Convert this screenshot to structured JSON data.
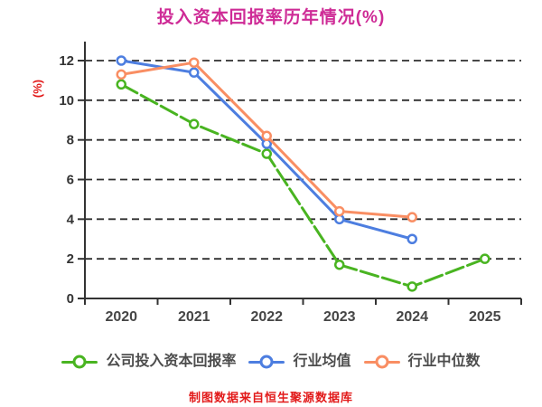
{
  "chart_data": {
    "type": "line",
    "title": "投入资本回报率历年情况(%)",
    "ylabel": "(%)",
    "xlabel": "",
    "categories": [
      "2020",
      "2021",
      "2022",
      "2023",
      "2024",
      "2025"
    ],
    "ylim": [
      0,
      12
    ],
    "yticks": [
      0,
      2,
      4,
      6,
      8,
      10,
      12
    ],
    "grid": "dashed horizontal gridlines",
    "legend_position": "bottom",
    "series": [
      {
        "name": "公司投入资本回报率",
        "color": "#49B421",
        "line_style": "dashed",
        "values": [
          10.8,
          8.8,
          7.3,
          1.7,
          0.6,
          2.0
        ]
      },
      {
        "name": "行业均值",
        "color": "#4D7EE0",
        "line_style": "solid",
        "values": [
          12.0,
          11.4,
          7.8,
          4.0,
          3.0,
          null
        ]
      },
      {
        "name": "行业中位数",
        "color": "#F98E63",
        "line_style": "solid",
        "values": [
          11.3,
          11.9,
          8.2,
          4.4,
          4.1,
          null
        ]
      }
    ],
    "footer": "制图数据来自恒生聚源数据库"
  },
  "colors": {
    "background": "#FFFFFF",
    "title": "#CE2B96",
    "ylabel": "#E21A1A",
    "footer": "#E21A1A",
    "axis": "#333333",
    "grid": "#2E2E2E",
    "tick_label": "#333333",
    "x_label": "#454545",
    "legend_text": "#4D4D4D",
    "marker_fill": "#FFFFFF"
  }
}
